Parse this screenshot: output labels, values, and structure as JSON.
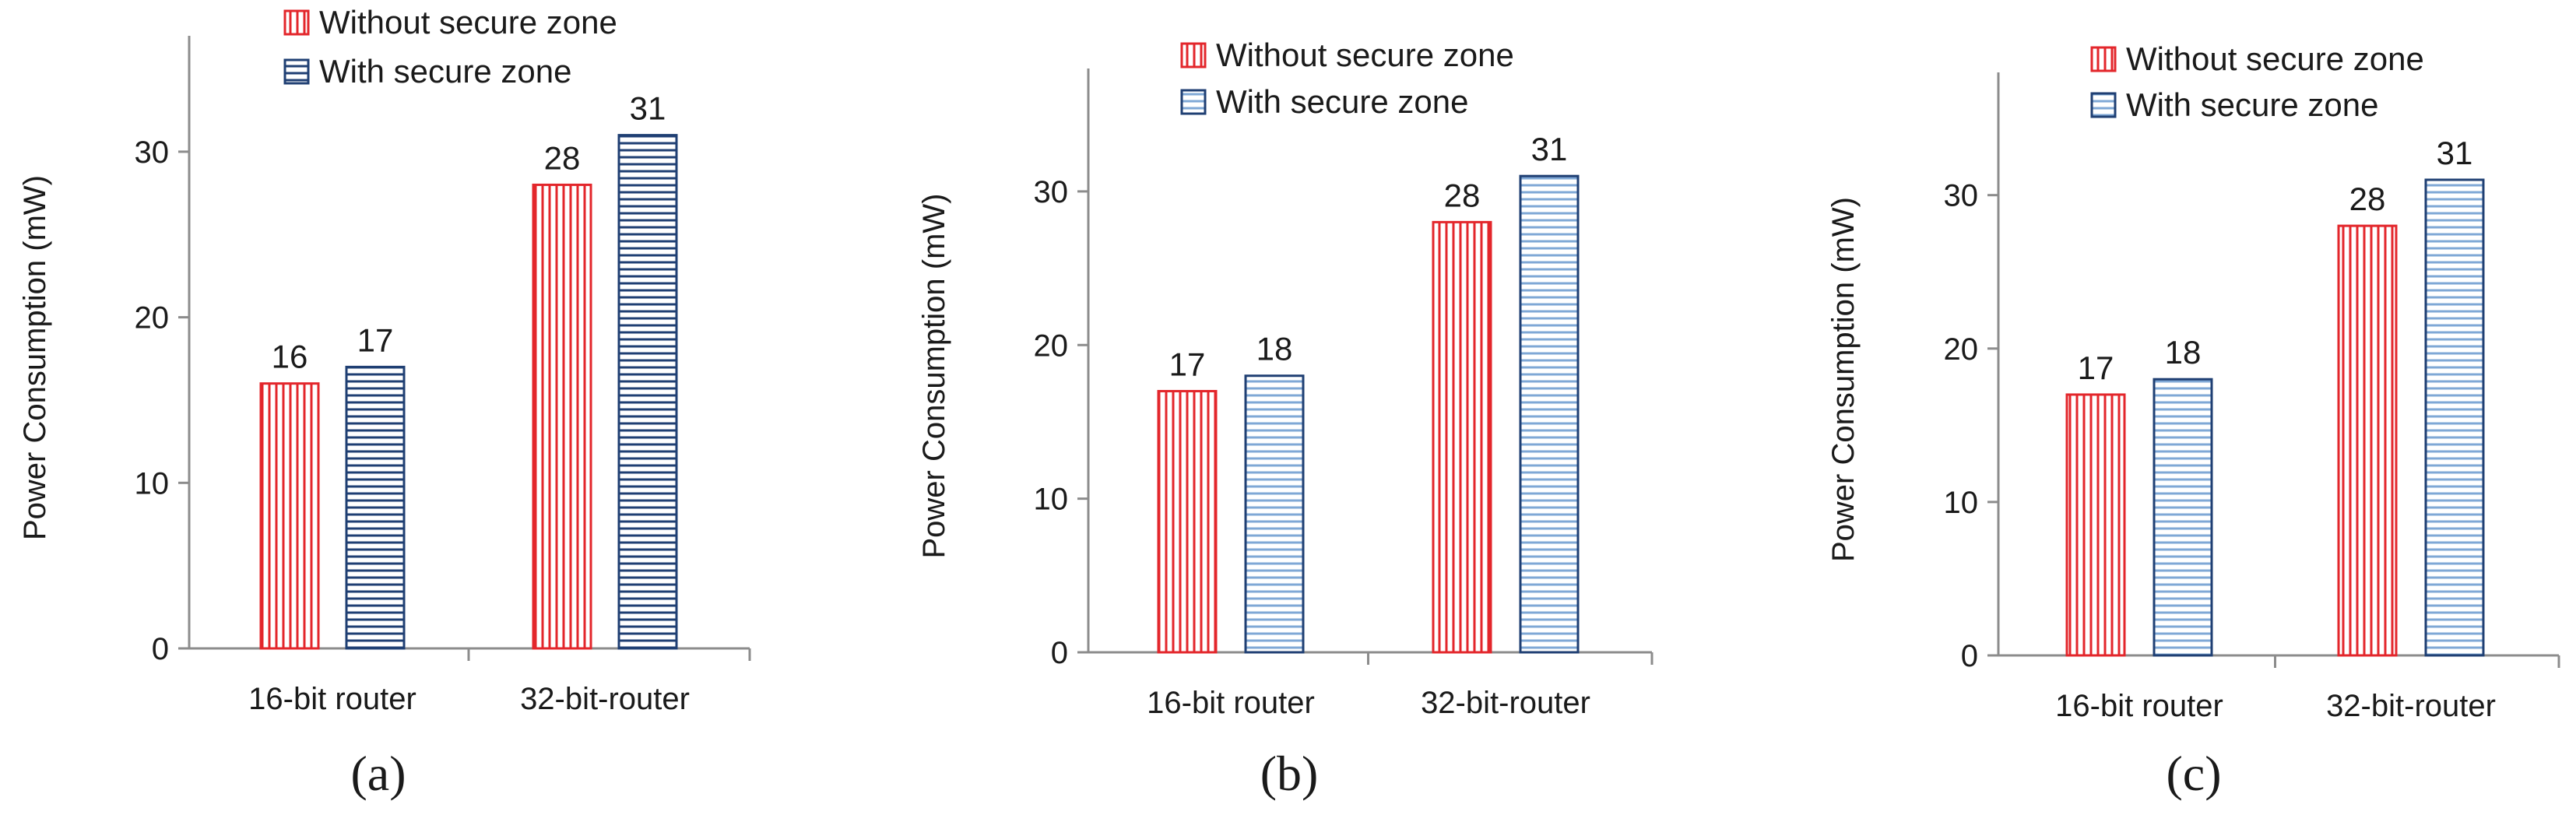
{
  "colors": {
    "without_edge": "#e3262b",
    "without_fill": "#f7c9c9",
    "with_edge": "#1f3f73",
    "with_fill_a": "#c9d6ea",
    "with_fill_bc": "#d7e6f5",
    "axis": "#8c8c8c"
  },
  "chart_data": [
    {
      "type": "bar",
      "panel_label": "(a)",
      "categories": [
        "16-bit router",
        "32-bit-router"
      ],
      "series": [
        {
          "name": "Without secure zone",
          "values": [
            16,
            28
          ],
          "pattern": "vertical-lines"
        },
        {
          "name": "With secure zone",
          "values": [
            17,
            31
          ],
          "pattern": "horizontal-lines"
        }
      ],
      "ylabel": "Power Consumption (mW)",
      "yticks": [
        0,
        10,
        20,
        30
      ],
      "ylim": [
        0,
        37
      ],
      "legend_position": "top",
      "grid": false
    },
    {
      "type": "bar",
      "panel_label": "(b)",
      "categories": [
        "16-bit router",
        "32-bit-router"
      ],
      "series": [
        {
          "name": "Without secure zone",
          "values": [
            17,
            28
          ],
          "pattern": "vertical-lines"
        },
        {
          "name": "With secure zone",
          "values": [
            18,
            31
          ],
          "pattern": "horizontal-lines"
        }
      ],
      "ylabel": "Power Consumption (mW)",
      "yticks": [
        0,
        10,
        20,
        30
      ],
      "ylim": [
        0,
        38
      ],
      "legend_position": "top",
      "grid": false
    },
    {
      "type": "bar",
      "panel_label": "(c)",
      "categories": [
        "16-bit router",
        "32-bit-router"
      ],
      "series": [
        {
          "name": "Without secure zone",
          "values": [
            17,
            28
          ],
          "pattern": "vertical-lines"
        },
        {
          "name": "With secure zone",
          "values": [
            18,
            31
          ],
          "pattern": "horizontal-lines"
        }
      ],
      "ylabel": "Power Consumption (mW)",
      "yticks": [
        0,
        10,
        20,
        30
      ],
      "ylim": [
        0,
        38
      ],
      "legend_position": "top",
      "grid": false
    }
  ]
}
